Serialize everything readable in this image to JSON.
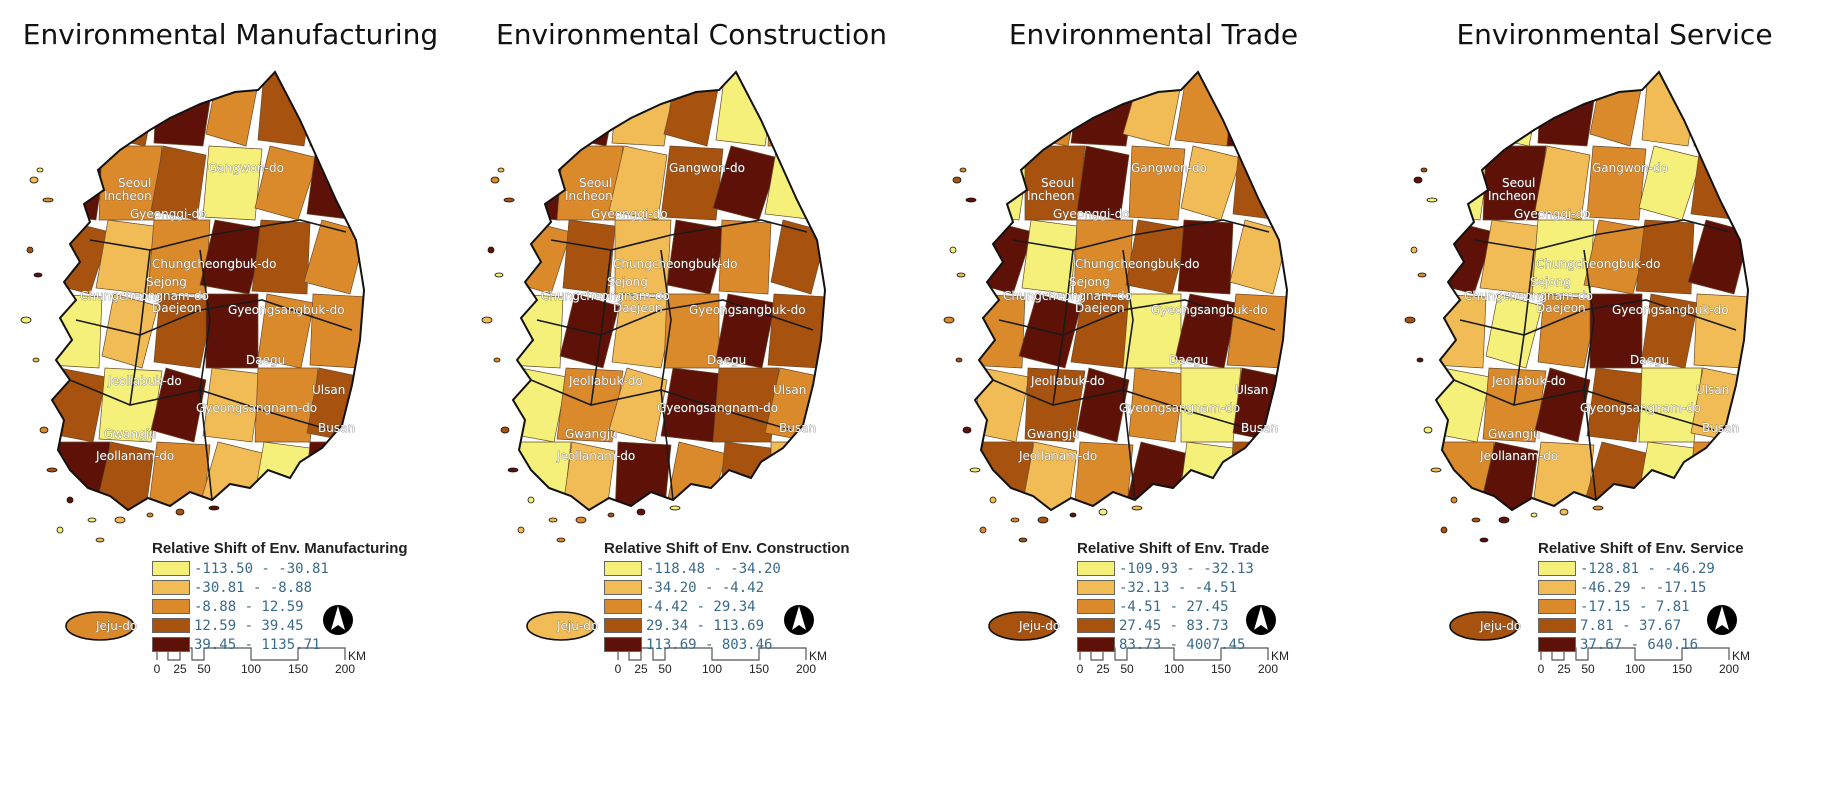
{
  "panels": [
    {
      "title": "Environmental Manufacturing",
      "legend": {
        "title": "Relative Shift of Env. Manufacturing",
        "classes": [
          "-113.50 - -30.81",
          "-30.81 - -8.88",
          "-8.88 - 12.59",
          "12.59 - 39.45",
          "39.45 - 1135.71"
        ]
      },
      "labels": [
        "Gangwon-do",
        "Seoul",
        "Incheon",
        "Gyeonggi-do",
        "Chungcheongbuk-do",
        "Sejong",
        "Chungcheongnam-do",
        "Daejeon",
        "Gyeongsangbuk-do",
        "Daegu",
        "Jeollabuk-do",
        "Ulsan",
        "Gyeongsangnam-do",
        "Busan",
        "Gwangju",
        "Jeollanam-do",
        "Jeju-do"
      ]
    },
    {
      "title": "Environmental Construction",
      "legend": {
        "title": "Relative Shift of Env. Construction",
        "classes": [
          "-118.48 - -34.20",
          "-34.20 - -4.42",
          "-4.42 - 29.34",
          "29.34 - 113.69",
          "113.69 - 803.46"
        ]
      },
      "labels": [
        "Gangwon-do",
        "Seoul",
        "Incheon",
        "Gyeonggi-do",
        "Chungcheongbuk-do",
        "Sejong",
        "Chungcheongnam-do",
        "Daejeon",
        "Gyeongsangbuk-do",
        "Daegu",
        "Jeollabuk-do",
        "Ulsan",
        "Gyeongsangnam-do",
        "Busan",
        "Gwangju",
        "Jeollanam-do",
        "Jeju-do"
      ]
    },
    {
      "title": "Environmental Trade",
      "legend": {
        "title": "Relative Shift of Env. Trade",
        "classes": [
          "-109.93 - -32.13",
          "-32.13 - -4.51",
          "-4.51 - 27.45",
          "27.45 - 83.73",
          "83.73 - 4007.45"
        ]
      },
      "labels": [
        "Gangwon-do",
        "Seoul",
        "Incheon",
        "Gyeonggi-do",
        "Chungcheongbuk-do",
        "Sejong",
        "Chungcheongnam-do",
        "Daejeon",
        "Gyeongsangbuk-do",
        "Daegu",
        "Jeollabuk-do",
        "Ulsan",
        "Gyeongsangnam-do",
        "Busan",
        "Gwangju",
        "Jeollanam-do",
        "Jeju-do"
      ]
    },
    {
      "title": "Environmental Service",
      "legend": {
        "title": "Relative Shift of Env. Service",
        "classes": [
          "-128.81 - -46.29",
          "-46.29 - -17.15",
          "-17.15 - 7.81",
          "7.81 - 37.67",
          "37.67 - 640.16"
        ]
      },
      "labels": [
        "Gangwon-do",
        "Seoul",
        "Incheon",
        "Gyeonggi-do",
        "Chungcheongbuk-do",
        "Sejong",
        "Chungcheongnam-do",
        "Daejeon",
        "Gyeongsangbuk-do",
        "Daegu",
        "Jeollabuk-do",
        "Ulsan",
        "Gyeongsangnam-do",
        "Busan",
        "Gwangju",
        "Jeollanam-do",
        "Jeju-do"
      ]
    }
  ],
  "scale": {
    "ticks": [
      "0",
      "25",
      "50",
      "100",
      "150",
      "200"
    ],
    "unit": "KM"
  },
  "palette": [
    "#f4f07a",
    "#f1bb55",
    "#db8a2b",
    "#a8520f",
    "#5e1207"
  ],
  "colorsBySeed": [
    [
      1,
      3,
      4,
      2,
      3,
      1,
      4,
      2,
      3,
      0,
      2,
      4,
      3,
      1,
      2,
      4,
      3,
      2,
      0,
      1,
      3,
      4,
      2,
      2,
      3,
      0,
      4,
      1,
      2,
      3,
      4,
      3,
      2,
      1,
      0,
      4
    ],
    [
      2,
      4,
      1,
      3,
      0,
      2,
      4,
      2,
      1,
      3,
      4,
      0,
      2,
      3,
      1,
      4,
      2,
      3,
      0,
      4,
      1,
      2,
      4,
      3,
      0,
      2,
      1,
      4,
      3,
      2,
      0,
      1,
      4,
      2,
      3,
      1
    ],
    [
      3,
      2,
      4,
      1,
      2,
      4,
      0,
      3,
      4,
      2,
      1,
      3,
      4,
      0,
      2,
      3,
      4,
      1,
      2,
      4,
      3,
      0,
      4,
      2,
      1,
      3,
      4,
      2,
      0,
      4,
      3,
      1,
      2,
      4,
      0,
      3
    ],
    [
      1,
      0,
      4,
      2,
      1,
      3,
      0,
      4,
      1,
      2,
      0,
      3,
      4,
      1,
      0,
      2,
      3,
      4,
      1,
      0,
      2,
      4,
      3,
      1,
      0,
      2,
      4,
      3,
      0,
      1,
      2,
      4,
      1,
      3,
      0,
      2
    ]
  ],
  "icons": {
    "north": "north-arrow-icon"
  }
}
